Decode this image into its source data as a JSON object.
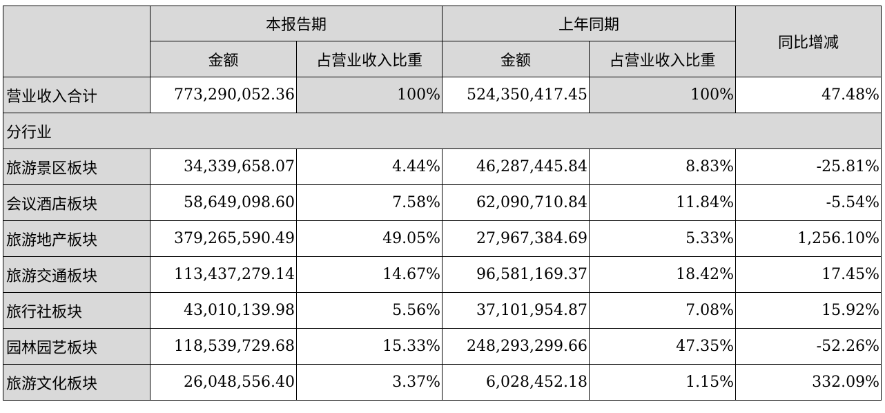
{
  "header": {
    "current_period": "本报告期",
    "prior_period": "上年同期",
    "yoy_change": "同比增减",
    "amount": "金额",
    "revenue_share": "占营业收入比重"
  },
  "total": {
    "label": "营业收入合计",
    "current_amount": "773,290,052.36",
    "current_share": "100%",
    "prior_amount": "524,350,417.45",
    "prior_share": "100%",
    "yoy": "47.48%"
  },
  "section_label": "分行业",
  "rows": [
    {
      "label": "旅游景区板块",
      "current_amount": "34,339,658.07",
      "current_share": "4.44%",
      "prior_amount": "46,287,445.84",
      "prior_share": "8.83%",
      "yoy": "-25.81%"
    },
    {
      "label": "会议酒店板块",
      "current_amount": "58,649,098.60",
      "current_share": "7.58%",
      "prior_amount": "62,090,710.84",
      "prior_share": "11.84%",
      "yoy": "-5.54%"
    },
    {
      "label": "旅游地产板块",
      "current_amount": "379,265,590.49",
      "current_share": "49.05%",
      "prior_amount": "27,967,384.69",
      "prior_share": "5.33%",
      "yoy": "1,256.10%"
    },
    {
      "label": "旅游交通板块",
      "current_amount": "113,437,279.14",
      "current_share": "14.67%",
      "prior_amount": "96,581,169.37",
      "prior_share": "18.42%",
      "yoy": "17.45%"
    },
    {
      "label": "旅行社板块",
      "current_amount": "43,010,139.98",
      "current_share": "5.56%",
      "prior_amount": "37,101,954.87",
      "prior_share": "7.08%",
      "yoy": "15.92%"
    },
    {
      "label": "园林园艺板块",
      "current_amount": "118,539,729.68",
      "current_share": "15.33%",
      "prior_amount": "248,293,299.66",
      "prior_share": "47.35%",
      "yoy": "-52.26%"
    },
    {
      "label": "旅游文化板块",
      "current_amount": "26,048,556.40",
      "current_share": "3.37%",
      "prior_amount": "6,028,452.18",
      "prior_share": "1.15%",
      "yoy": "332.09%"
    }
  ]
}
